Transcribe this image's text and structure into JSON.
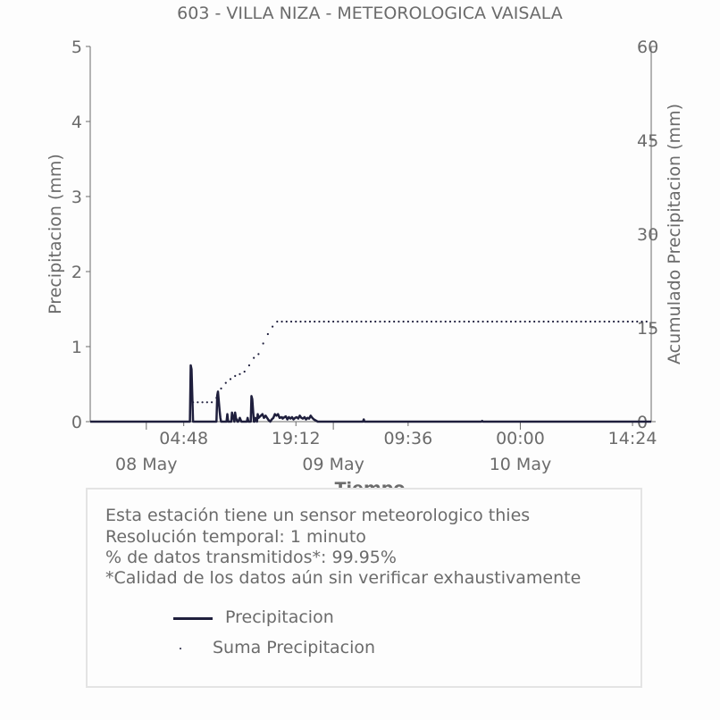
{
  "chart_data": {
    "type": "line",
    "title": "603 - VILLA NIZA - METEOROLOGICA VAISALA",
    "xlabel": "Tiempo",
    "ylabel_left": "Precipitacion (mm)",
    "ylabel_right": "Acumulado Precipitacion (mm)",
    "x_range_hours": [
      -7.2,
      64.8
    ],
    "ylim_left": [
      0,
      5
    ],
    "ylim_right": [
      0,
      60
    ],
    "yticks_left": [
      "0",
      "1",
      "2",
      "3",
      "4",
      "5"
    ],
    "yticks_right": [
      "0",
      "15",
      "30",
      "45",
      "60"
    ],
    "xticks": [
      {
        "hours": 4.8,
        "label": "04:48",
        "date": ""
      },
      {
        "hours": 19.2,
        "label": "19:12",
        "date": ""
      },
      {
        "hours": 33.6,
        "label": "09:36",
        "date": ""
      },
      {
        "hours": 48.0,
        "label": "00:00",
        "date": ""
      },
      {
        "hours": 62.4,
        "label": "14:24",
        "date": ""
      }
    ],
    "date_labels": [
      {
        "hours": 0,
        "label": "08 May"
      },
      {
        "hours": 24,
        "label": "09 May"
      },
      {
        "hours": 48,
        "label": "10 May"
      }
    ],
    "series": [
      {
        "name": "Precipitacion",
        "color": "#1f1f3d",
        "style": "line",
        "axis": "left",
        "x_hours": [
          -7.2,
          5.6,
          5.7,
          5.8,
          6.0,
          6.1,
          6.2,
          9.0,
          9.1,
          9.2,
          9.4,
          9.5,
          9.6,
          10.3,
          10.4,
          10.5,
          10.9,
          11.0,
          11.1,
          11.3,
          11.4,
          11.5,
          11.7,
          11.8,
          12.0,
          12.2,
          12.4,
          12.6,
          12.9,
          13.0,
          13.1,
          13.4,
          13.5,
          13.6,
          13.8,
          13.9,
          14.0,
          14.2,
          14.3,
          14.4,
          14.9,
          15.1,
          15.3,
          15.5,
          15.7,
          15.9,
          16.1,
          16.3,
          16.5,
          16.7,
          16.9,
          17.1,
          17.4,
          17.5,
          17.6,
          17.9,
          18.1,
          18.3,
          18.5,
          18.7,
          18.9,
          19.1,
          19.3,
          19.5,
          19.7,
          19.9,
          20.1,
          20.3,
          20.5,
          20.7,
          20.9,
          21.1,
          21.3,
          21.5,
          22.0,
          22.2,
          27.8,
          27.9,
          28.0,
          43.0,
          43.1,
          43.2,
          64.8
        ],
        "values": [
          0,
          0,
          0.75,
          0.7,
          0,
          0,
          0,
          0,
          0.35,
          0.4,
          0.15,
          0.05,
          0,
          0,
          0.1,
          0,
          0,
          0.12,
          0.08,
          0,
          0.12,
          0.05,
          0,
          0,
          0.05,
          0,
          0,
          0,
          0,
          0.05,
          0,
          0,
          0.34,
          0.3,
          0,
          0,
          0.05,
          0,
          0.1,
          0.05,
          0.1,
          0.05,
          0.08,
          0.05,
          0.02,
          0,
          0.03,
          0.05,
          0.1,
          0.08,
          0.1,
          0.05,
          0.06,
          0.04,
          0.05,
          0.07,
          0.03,
          0.06,
          0.04,
          0.06,
          0.03,
          0.05,
          0.06,
          0.04,
          0.08,
          0.05,
          0.04,
          0.06,
          0.03,
          0.05,
          0.04,
          0.08,
          0.05,
          0.03,
          0,
          0,
          0,
          0.03,
          0,
          0,
          0.01,
          0,
          0
        ]
      },
      {
        "name": "Suma Precipitacion",
        "color": "#1f1f3d",
        "style": "dots",
        "axis": "right",
        "x_hours": [
          6.0,
          6.6,
          7.2,
          7.8,
          8.4,
          9.0,
          9.6,
          10.2,
          10.8,
          11.4,
          12.0,
          12.6,
          13.2,
          13.8,
          14.4,
          15.0,
          15.6,
          16.2,
          16.8,
          17.4,
          18.0,
          18.6,
          19.2,
          19.8,
          20.4,
          21.0,
          21.6,
          22.2,
          22.8,
          23.4,
          24.0,
          24.6,
          25.2,
          25.8,
          26.4,
          27.0,
          27.6,
          28.2,
          28.8,
          29.4,
          30.0,
          30.6,
          31.2,
          31.8,
          32.4,
          33.0,
          33.6,
          34.2,
          34.8,
          35.4,
          36.0,
          36.6,
          37.2,
          37.8,
          38.4,
          39.0,
          39.6,
          40.2,
          40.8,
          41.4,
          42.0,
          42.6,
          43.2,
          43.8,
          44.4,
          45.0,
          45.6,
          46.2,
          46.8,
          47.4,
          48.0,
          48.6,
          49.2,
          49.8,
          50.4,
          51.0,
          51.6,
          52.2,
          52.8,
          53.4,
          54.0,
          54.6,
          55.2,
          55.8,
          56.4,
          57.0,
          57.6,
          58.2,
          58.8,
          59.4,
          60.0,
          60.6,
          61.2,
          61.8,
          62.4,
          63.0,
          63.6,
          64.2
        ],
        "values": [
          3.1,
          3.1,
          3.1,
          3.1,
          3.1,
          3.8,
          5.3,
          6.2,
          6.8,
          7.3,
          7.6,
          8.0,
          9.0,
          10.2,
          10.8,
          12.5,
          14.0,
          15.2,
          16.0,
          16.0,
          16.0,
          16.0,
          16.0,
          16.0,
          16.0,
          16.0,
          16.0,
          16.0,
          16.0,
          16.0,
          16.0,
          16.0,
          16.0,
          16.0,
          16.0,
          16.0,
          16.0,
          16.0,
          16.0,
          16.0,
          16.0,
          16.0,
          16.0,
          16.0,
          16.0,
          16.0,
          16.0,
          16.0,
          16.0,
          16.0,
          16.0,
          16.0,
          16.0,
          16.0,
          16.0,
          16.0,
          16.0,
          16.0,
          16.0,
          16.0,
          16.0,
          16.0,
          16.0,
          16.0,
          16.0,
          16.0,
          16.0,
          16.0,
          16.0,
          16.0,
          16.0,
          16.0,
          16.0,
          16.0,
          16.0,
          16.0,
          16.0,
          16.0,
          16.0,
          16.0,
          16.0,
          16.0,
          16.0,
          16.0,
          16.0,
          16.0,
          16.0,
          16.0,
          16.0,
          16.0,
          16.0,
          16.0,
          16.0,
          16.0,
          16.0,
          16.0,
          16.0,
          16.0
        ]
      }
    ],
    "grid": false,
    "legend_position": "bottom"
  },
  "info": {
    "line1": "Esta estación tiene un sensor meteorologico thies",
    "line2": "Resolución temporal: 1 minuto",
    "line3": "% de datos transmitidos*: 99.95%",
    "line4": "*Calidad de los datos aún sin verificar exhaustivamente"
  },
  "legend": {
    "item1": "Precipitacion",
    "item2": "Suma Precipitacion"
  }
}
